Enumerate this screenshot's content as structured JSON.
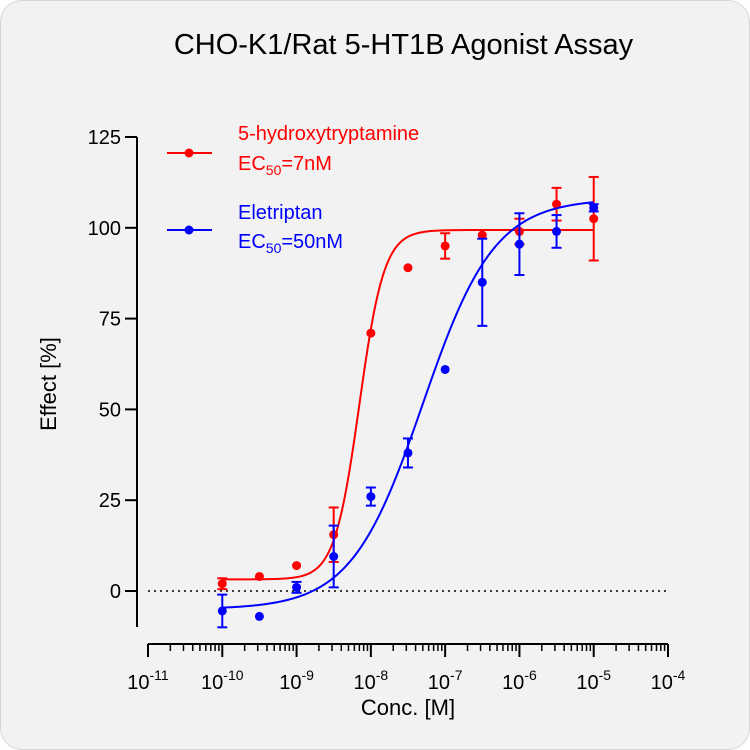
{
  "chart_data": {
    "type": "scatter",
    "title": "CHO-K1/Rat 5-HT1B Agonist Assay",
    "xlabel": "Conc. [M]",
    "ylabel": "Effect  [%]",
    "x_scale": "log",
    "xlim": [
      1e-11,
      0.0001
    ],
    "ylim": [
      -10,
      125
    ],
    "x_ticks": [
      {
        "base": "10",
        "exp": "-11",
        "value": 1e-11
      },
      {
        "base": "10",
        "exp": "-10",
        "value": 1e-10
      },
      {
        "base": "10",
        "exp": "-9",
        "value": 1e-09
      },
      {
        "base": "10",
        "exp": "-8",
        "value": 1e-08
      },
      {
        "base": "10",
        "exp": "-7",
        "value": 1e-07
      },
      {
        "base": "10",
        "exp": "-6",
        "value": 1e-06
      },
      {
        "base": "10",
        "exp": "-5",
        "value": 1e-05
      },
      {
        "base": "10",
        "exp": "-4",
        "value": 0.0001
      }
    ],
    "y_ticks": [
      0,
      25,
      50,
      75,
      100,
      125
    ],
    "reference_line": {
      "y": 0,
      "style": "dotted"
    },
    "legend_position": "top-left",
    "series": [
      {
        "name": "5-hydroxytryptamine",
        "ec50_label": {
          "prefix": "EC",
          "sub": "50",
          "suffix": "=7nM"
        },
        "color": "#ff0000",
        "fit": {
          "bottom": 3.2,
          "top": 99.4,
          "ec50": 7e-09,
          "hill": 2.6
        },
        "points": [
          {
            "x": 1e-10,
            "y": 2,
            "err": 1.5
          },
          {
            "x": 3.16e-10,
            "y": 4,
            "err": 0
          },
          {
            "x": 1e-09,
            "y": 7,
            "err": 0
          },
          {
            "x": 3.16e-09,
            "y": 15.5,
            "err": 7.5
          },
          {
            "x": 1e-08,
            "y": 71,
            "err": 0
          },
          {
            "x": 3.16e-08,
            "y": 89,
            "err": 0
          },
          {
            "x": 1e-07,
            "y": 95,
            "err": 3.5
          },
          {
            "x": 3.16e-07,
            "y": 98,
            "err": 0
          },
          {
            "x": 1e-06,
            "y": 99,
            "err": 3.5
          },
          {
            "x": 3.16e-06,
            "y": 106.5,
            "err": 4.5
          },
          {
            "x": 1e-05,
            "y": 102.5,
            "err": 11.5
          }
        ]
      },
      {
        "name": "Eletriptan",
        "ec50_label": {
          "prefix": "EC",
          "sub": "50",
          "suffix": "=50nM"
        },
        "color": "#0000ff",
        "fit": {
          "bottom": -5,
          "top": 108,
          "ec50": 5e-08,
          "hill": 0.9
        },
        "points": [
          {
            "x": 1e-10,
            "y": -5.5,
            "err": 4.5
          },
          {
            "x": 3.16e-10,
            "y": -7,
            "err": 0
          },
          {
            "x": 1e-09,
            "y": 1,
            "err": 1.5
          },
          {
            "x": 3.16e-09,
            "y": 9.5,
            "err": 8.5
          },
          {
            "x": 1e-08,
            "y": 26,
            "err": 2.5
          },
          {
            "x": 3.16e-08,
            "y": 38,
            "err": 4
          },
          {
            "x": 1e-07,
            "y": 61,
            "err": 0
          },
          {
            "x": 3.16e-07,
            "y": 85,
            "err": 12
          },
          {
            "x": 1e-06,
            "y": 95.5,
            "err": 8.5
          },
          {
            "x": 3.16e-06,
            "y": 99,
            "err": 4.5
          },
          {
            "x": 1e-05,
            "y": 105.5,
            "err": 1
          }
        ]
      }
    ]
  }
}
